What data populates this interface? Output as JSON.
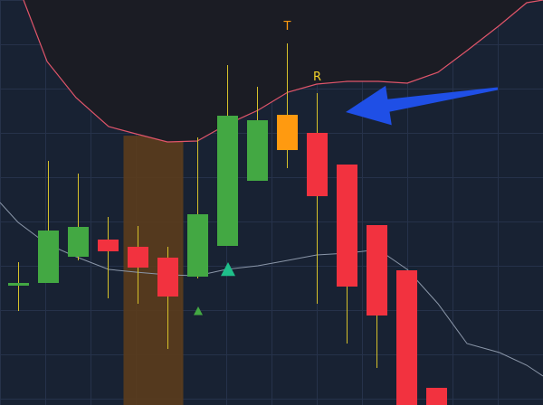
{
  "colors": {
    "background": "#182233",
    "grid": "#26324a",
    "upper_band_fill": "#1b1c24",
    "upper_band_line": "#e0556a",
    "lower_line": "#8a96a8",
    "highlight_zone": "#5a3c1c",
    "bull": "#43a843",
    "bear": "#f2323f",
    "special": "#ff9a10",
    "wick": "#d6c12a",
    "arrow": "#1f4fe6",
    "marker": "#1fbf8a",
    "label_T": "#ff9a10",
    "label_R": "#f2d22a"
  },
  "chart_data": {
    "type": "candlestick",
    "title": "",
    "xlabel": "",
    "ylabel": "",
    "grid": true,
    "ylim": [
      0,
      448
    ],
    "candles": [
      {
        "i": 0,
        "open": 134,
        "close": 135,
        "high": 158,
        "low": 104,
        "kind": "bull"
      },
      {
        "i": 1,
        "open": 135,
        "close": 193,
        "high": 270,
        "low": 135,
        "kind": "bull"
      },
      {
        "i": 2,
        "open": 164,
        "close": 197,
        "high": 256,
        "low": 160,
        "kind": "bull"
      },
      {
        "i": 3,
        "open": 183,
        "close": 170,
        "high": 208,
        "low": 118,
        "kind": "bear"
      },
      {
        "i": 4,
        "open": 175,
        "close": 152,
        "high": 198,
        "low": 112,
        "kind": "bear"
      },
      {
        "i": 5,
        "open": 163,
        "close": 120,
        "high": 175,
        "low": 62,
        "kind": "bear"
      },
      {
        "i": 6,
        "open": 142,
        "close": 211,
        "high": 296,
        "low": 140,
        "kind": "bull"
      },
      {
        "i": 7,
        "open": 176,
        "close": 320,
        "high": 376,
        "low": 176,
        "kind": "bull"
      },
      {
        "i": 8,
        "open": 248,
        "close": 315,
        "high": 352,
        "low": 248,
        "kind": "bull"
      },
      {
        "i": 9,
        "open": 282,
        "close": 321,
        "high": 400,
        "low": 262,
        "kind": "special"
      },
      {
        "i": 10,
        "open": 301,
        "close": 231,
        "high": 345,
        "low": 112,
        "kind": "bear"
      },
      {
        "i": 11,
        "open": 266,
        "close": 131,
        "high": 266,
        "low": 68,
        "kind": "bear"
      },
      {
        "i": 12,
        "open": 199,
        "close": 99,
        "high": 199,
        "low": 41,
        "kind": "bear"
      },
      {
        "i": 13,
        "open": 149,
        "close": 0,
        "high": 149,
        "low": 0,
        "kind": "bear"
      },
      {
        "i": 14,
        "open": 19,
        "close": 0,
        "high": 19,
        "low": 0,
        "kind": "bear"
      }
    ],
    "upper_band": [
      [
        26,
        448
      ],
      [
        52,
        380
      ],
      [
        84,
        340
      ],
      [
        120,
        308
      ],
      [
        150,
        300
      ],
      [
        185,
        291
      ],
      [
        218,
        292
      ],
      [
        250,
        310
      ],
      [
        285,
        326
      ],
      [
        318,
        346
      ],
      [
        350,
        355
      ],
      [
        384,
        358
      ],
      [
        418,
        358
      ],
      [
        450,
        356
      ],
      [
        484,
        368
      ],
      [
        516,
        392
      ],
      [
        552,
        420
      ],
      [
        582,
        445
      ],
      [
        600,
        448
      ]
    ],
    "lower_line": [
      [
        0,
        224
      ],
      [
        20,
        202
      ],
      [
        52,
        178
      ],
      [
        84,
        164
      ],
      [
        120,
        150
      ],
      [
        150,
        147
      ],
      [
        185,
        144
      ],
      [
        218,
        143
      ],
      [
        250,
        150
      ],
      [
        285,
        154
      ],
      [
        318,
        160
      ],
      [
        350,
        166
      ],
      [
        384,
        168
      ],
      [
        418,
        172
      ],
      [
        450,
        150
      ],
      [
        484,
        112
      ],
      [
        516,
        68
      ],
      [
        552,
        58
      ],
      [
        582,
        44
      ],
      [
        600,
        32
      ]
    ],
    "highlight_zone": {
      "from_index": 4,
      "to_index": 5
    },
    "markers": [
      {
        "index": 7,
        "value": 150,
        "size": "large",
        "shape": "triangle-up"
      },
      {
        "index": 6,
        "value": 104,
        "size": "small",
        "shape": "triangle-up"
      }
    ],
    "annotations": [
      {
        "text": "T",
        "index": 9,
        "value": 415,
        "color_key": "label_T"
      },
      {
        "text": "R",
        "index": 10,
        "value": 359,
        "color_key": "label_R"
      }
    ],
    "arrow": {
      "from": [
        550,
        350
      ],
      "to": [
        382,
        324
      ],
      "color_key": "arrow"
    }
  }
}
